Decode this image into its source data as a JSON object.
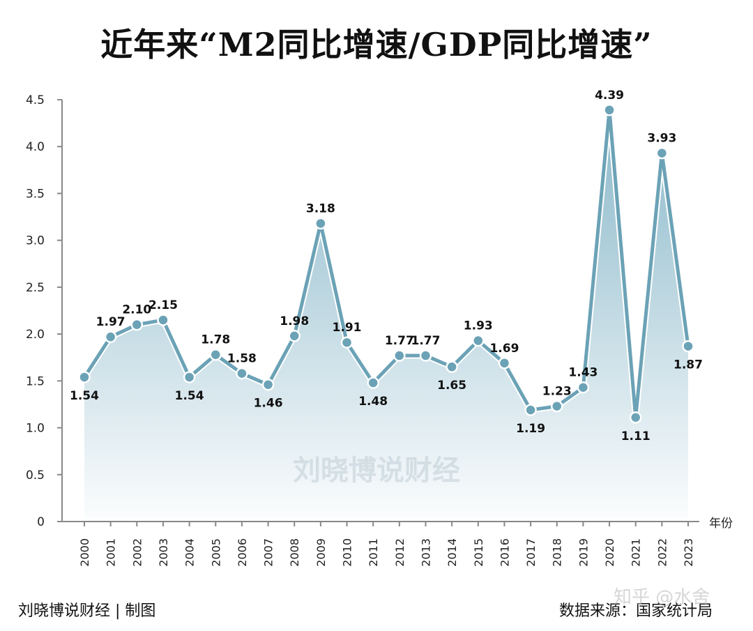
{
  "chart_data": {
    "type": "area",
    "title": "近年来“M2同比增速/GDP同比增速”",
    "xlabel": "年份",
    "ylabel": "",
    "ylim": [
      0,
      4.5
    ],
    "yticks": [
      "0",
      "0.5",
      "1.0",
      "1.5",
      "2.0",
      "2.5",
      "3.0",
      "3.5",
      "4.0",
      "4.5"
    ],
    "categories": [
      "2000",
      "2001",
      "2002",
      "2003",
      "2004",
      "2005",
      "2006",
      "2007",
      "2008",
      "2009",
      "2010",
      "2011",
      "2012",
      "2013",
      "2014",
      "2015",
      "2016",
      "2017",
      "2018",
      "2019",
      "2020",
      "2021",
      "2022",
      "2023"
    ],
    "values": [
      1.54,
      1.97,
      2.1,
      2.15,
      1.54,
      1.78,
      1.58,
      1.46,
      1.98,
      3.18,
      1.91,
      1.48,
      1.77,
      1.77,
      1.65,
      1.93,
      1.69,
      1.19,
      1.23,
      1.43,
      4.39,
      1.11,
      3.93,
      1.87
    ],
    "labels": [
      "1.54",
      "1.97",
      "2.10",
      "2.15",
      "1.54",
      "1.78",
      "1.58",
      "1.46",
      "1.98",
      "3.18",
      "1.91",
      "1.48",
      "1.77",
      "1.77",
      "1.65",
      "1.93",
      "1.69",
      "1.19",
      "1.23",
      "1.43",
      "4.39",
      "1.11",
      "3.93",
      "1.87"
    ],
    "grid": false,
    "line_color": "#6ba2b6",
    "area_color": "#8ab8ca"
  },
  "watermark": "刘晓博说财经",
  "footer": {
    "left": "刘晓博说财经 | 制图",
    "right": "数据来源：国家统计局",
    "platform_watermark": "知乎 @水舍"
  }
}
